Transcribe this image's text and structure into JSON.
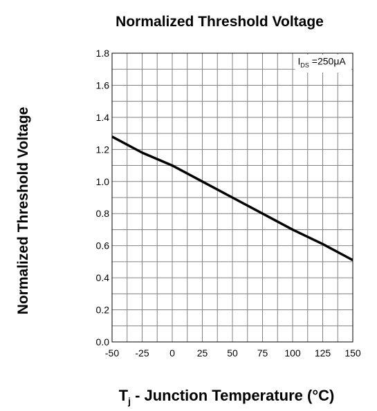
{
  "chart_data": {
    "type": "line",
    "title": "Normalized Threshold Voltage",
    "ylabel": "Normalized Threshold Voltage",
    "xlabel_main": "T",
    "xlabel_sub": "j",
    "xlabel_rest": " - Junction Temperature (°C)",
    "xlim": [
      -50,
      150
    ],
    "ylim": [
      0,
      1.8
    ],
    "x_ticks": [
      -50,
      -25,
      0,
      25,
      50,
      75,
      100,
      125,
      150
    ],
    "y_ticks": [
      0,
      0.2,
      0.4,
      0.6,
      0.8,
      1.0,
      1.2,
      1.4,
      1.6,
      1.8
    ],
    "y_tick_labels": [
      "0.0",
      "0.2",
      "0.4",
      "0.6",
      "0.8",
      "1.0",
      "1.2",
      "1.4",
      "1.6",
      "1.8"
    ],
    "x_tick_labels": [
      "-50",
      "-25",
      "0",
      "25",
      "50",
      "75",
      "100",
      "125",
      "150"
    ],
    "grid": true,
    "annotation": {
      "main": "I",
      "sub": "DS",
      "rest": " =250μA"
    },
    "series": [
      {
        "x": [
          -50,
          -25,
          0,
          25,
          50,
          75,
          100,
          125,
          150
        ],
        "y": [
          1.28,
          1.18,
          1.1,
          1.0,
          0.9,
          0.8,
          0.7,
          0.61,
          0.51
        ]
      }
    ]
  }
}
